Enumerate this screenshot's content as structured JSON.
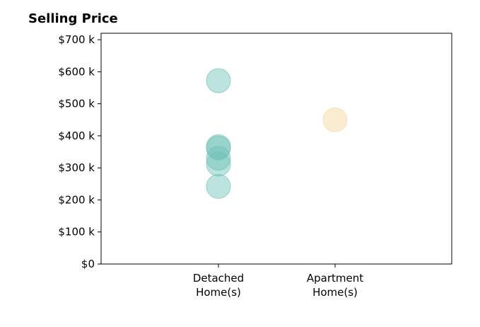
{
  "chart_data": {
    "type": "scatter",
    "title": "Selling Price",
    "xlabel": "",
    "ylabel": "",
    "categories": [
      [
        "Detached",
        "Home(s)"
      ],
      [
        "Apartment",
        "Home(s)"
      ]
    ],
    "ylim": [
      0,
      720000
    ],
    "y_ticks": [
      {
        "value": 0,
        "label": "$0"
      },
      {
        "value": 100000,
        "label": "$100 k"
      },
      {
        "value": 200000,
        "label": "$200 k"
      },
      {
        "value": 300000,
        "label": "$300 k"
      },
      {
        "value": 400000,
        "label": "$400 k"
      },
      {
        "value": 500000,
        "label": "$500 k"
      },
      {
        "value": 600000,
        "label": "$600 k"
      },
      {
        "value": 700000,
        "label": "$700 k"
      }
    ],
    "series": [
      {
        "category": 0,
        "color": "#6cc0b5",
        "opacity": 0.45,
        "values": [
          572000,
          366000,
          362000,
          330000,
          312000,
          242000
        ]
      },
      {
        "category": 1,
        "color": "#f5dfb0",
        "opacity": 0.6,
        "values": [
          450000
        ]
      }
    ],
    "grid": false,
    "legend": "none"
  }
}
